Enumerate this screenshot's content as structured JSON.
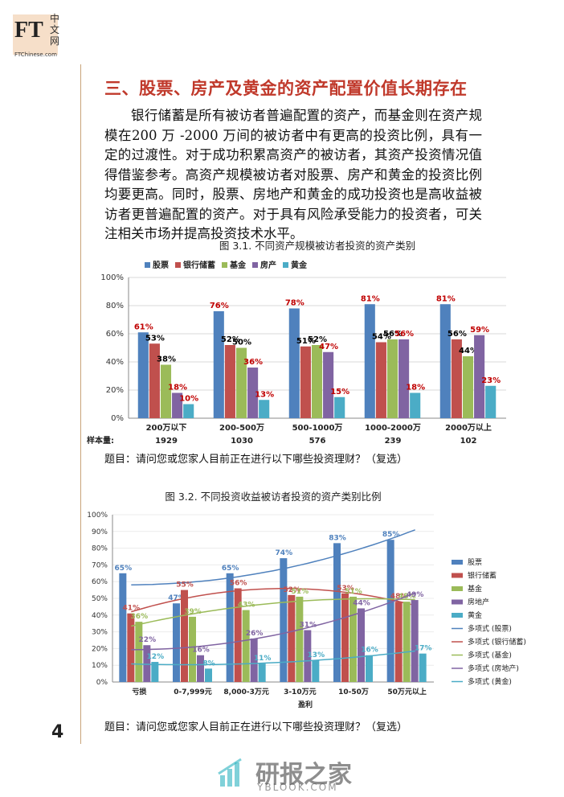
{
  "header": {
    "logo": "FT",
    "logo_cn": [
      "中",
      "文",
      "网"
    ],
    "site": "FTChinese.com"
  },
  "section_title": "三、股票、房产及黄金的资产配置价值长期存在",
  "paragraph": "银行储蓄是所有被访者普遍配置的资产，而基金则在资产规模在200 万 -2000 万间的被访者中有更高的投资比例，具有一定的过渡性。对于成功积累高资产的被访者，其资产投资情况值得借鉴参考。高资产规模被访者对股票、房产和黄金的投资比例均要更高。同时，股票、房地产和黄金的成功投资也是高收益被访者更普遍配置的资产。对于具有风险承受能力的投资者，可关注相关市场并提高投资技术水平。",
  "chart_data": [
    {
      "type": "bar",
      "title": "图 3.1.  不同资产规模被访者投资的资产类别",
      "legend": "top",
      "categories": [
        "200万以下",
        "200-500万",
        "500-1000万",
        "1000-2000万",
        "2000万以上"
      ],
      "sample_label": "样本量:",
      "sample_sizes": [
        1929,
        1030,
        576,
        239,
        102
      ],
      "ylim": [
        0,
        100
      ],
      "yticks": [
        {
          "value": 0,
          "label": "0%"
        },
        {
          "value": 20,
          "label": "20%"
        },
        {
          "value": 40,
          "label": "40%"
        },
        {
          "value": 60,
          "label": "60%"
        },
        {
          "value": 80,
          "label": "80%"
        },
        {
          "value": 100,
          "label": "100%"
        }
      ],
      "series": [
        {
          "name": "股票",
          "color": "#4f81bd",
          "label_color": "#c00000",
          "values": [
            61,
            76,
            78,
            81,
            81
          ],
          "value_labels": [
            "61%",
            "76%",
            "78%",
            "81%",
            "81%"
          ]
        },
        {
          "name": "银行储蓄",
          "color": "#c0504d",
          "label_color": "#000000",
          "values": [
            53,
            52,
            51,
            54,
            56
          ],
          "value_labels": [
            "53%",
            "52%",
            "51%",
            "54%",
            "56%"
          ]
        },
        {
          "name": "基金",
          "color": "#9bbb59",
          "label_color": "#000000",
          "values": [
            38,
            50,
            52,
            56,
            44
          ],
          "value_labels": [
            "38%",
            "50%",
            "52%",
            "56%",
            "44%"
          ]
        },
        {
          "name": "房产",
          "color": "#8064a2",
          "label_color": "#c00000",
          "values": [
            18,
            36,
            47,
            56,
            59
          ],
          "value_labels": [
            "18%",
            "36%",
            "47%",
            "56%",
            "59%"
          ]
        },
        {
          "name": "黄金",
          "color": "#4bacc6",
          "label_color": "#c00000",
          "values": [
            10,
            13,
            15,
            18,
            23
          ],
          "value_labels": [
            "10%",
            "13%",
            "15%",
            "18%",
            "23%"
          ]
        }
      ],
      "note": "题目：请问您或您家人目前正在进行以下哪些投资理财？（复选）"
    },
    {
      "type": "bar",
      "title": "图 3.2.  不同投资收益被访者投资的资产类别比例",
      "legend": "right",
      "trendline": "polynomial",
      "categories": [
        "亏损",
        "0-7,999元",
        "8,000-3万元",
        "3-10万元",
        "10-50万",
        "50万元以上"
      ],
      "x_label": "盈利",
      "ylim": [
        0,
        100
      ],
      "yticks": [
        {
          "value": 0,
          "label": "0%"
        },
        {
          "value": 10,
          "label": "10%"
        },
        {
          "value": 20,
          "label": "20%"
        },
        {
          "value": 30,
          "label": "30%"
        },
        {
          "value": 40,
          "label": "40%"
        },
        {
          "value": 50,
          "label": "50%"
        },
        {
          "value": 60,
          "label": "60%"
        },
        {
          "value": 70,
          "label": "70%"
        },
        {
          "value": 80,
          "label": "80%"
        },
        {
          "value": 90,
          "label": "90%"
        },
        {
          "value": 100,
          "label": "100%"
        }
      ],
      "series": [
        {
          "name": "股票",
          "trend_name": "多项式 (股票)",
          "color": "#4f81bd",
          "label_color": "#4f81bd",
          "values": [
            65,
            47,
            65,
            74,
            83,
            85
          ],
          "value_labels": [
            "65%",
            "47%",
            "65%",
            "74%",
            "83%",
            "85%"
          ]
        },
        {
          "name": "银行储蓄",
          "trend_name": "多项式 (银行储蓄)",
          "color": "#c0504d",
          "label_color": "#c0504d",
          "values": [
            41,
            55,
            56,
            52,
            53,
            48
          ],
          "value_labels": [
            "41%",
            "55%",
            "56%",
            "52%",
            "53%",
            "48%"
          ]
        },
        {
          "name": "基金",
          "trend_name": "多项式 (基金)",
          "color": "#9bbb59",
          "label_color": "#9bbb59",
          "values": [
            36,
            39,
            43,
            51,
            51,
            48
          ],
          "value_labels": [
            "36%",
            "39%",
            "43%",
            "51%",
            "51%",
            "48%"
          ]
        },
        {
          "name": "房地产",
          "trend_name": "多项式 (房地产)",
          "color": "#8064a2",
          "label_color": "#8064a2",
          "values": [
            22,
            16,
            26,
            31,
            44,
            49
          ],
          "value_labels": [
            "22%",
            "16%",
            "26%",
            "31%",
            "44%",
            "49%"
          ]
        },
        {
          "name": "黄金",
          "trend_name": "多项式 (黄金)",
          "color": "#4bacc6",
          "label_color": "#4bacc6",
          "values": [
            12,
            8,
            11,
            13,
            16,
            17
          ],
          "value_labels": [
            "12%",
            "8%",
            "11%",
            "13%",
            "16%",
            "17%"
          ]
        }
      ],
      "note": "题目：请问您或您家人目前正在进行以下哪些投资理财？（复选）"
    }
  ],
  "page_number": "4",
  "watermark": {
    "name": "研报之家",
    "site": "YBLOOK.COM"
  }
}
